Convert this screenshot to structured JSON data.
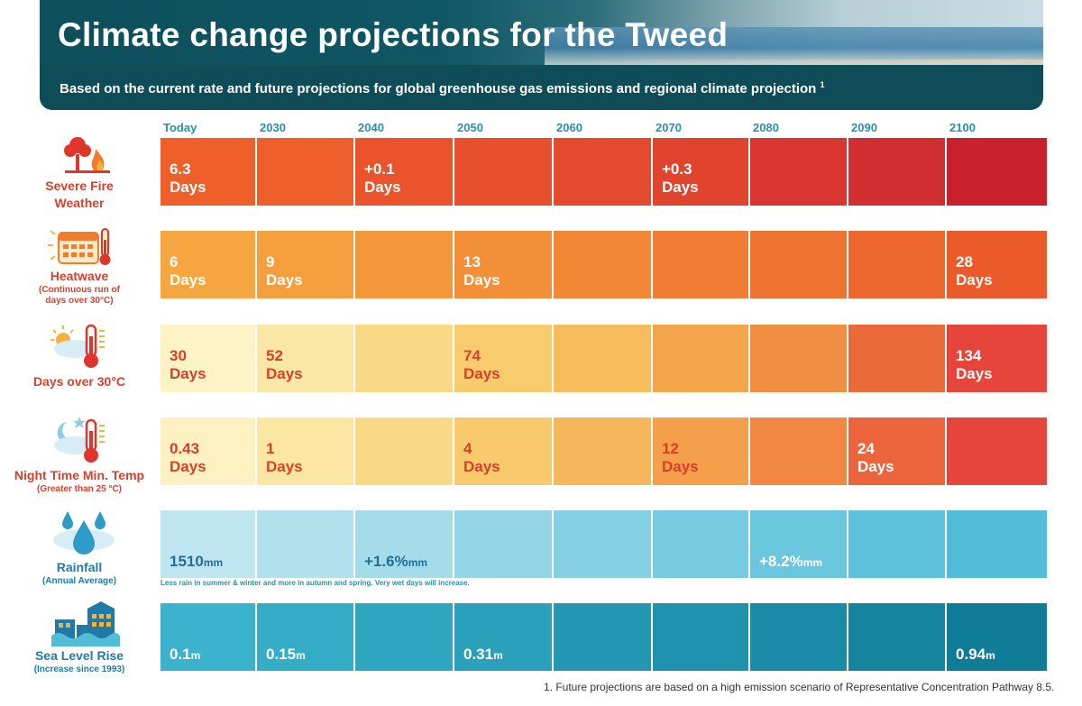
{
  "header": {
    "title": "Climate change projections for the Tweed",
    "subtitle": "Based on the current rate and future projections for global greenhouse gas emissions and regional climate projection",
    "subtitle_ref": "1"
  },
  "years": [
    "Today",
    "2030",
    "2040",
    "2050",
    "2060",
    "2070",
    "2080",
    "2090",
    "2100"
  ],
  "rows": [
    {
      "label": "Severe Fire Weather",
      "label_line1": "Severe Fire",
      "label_line2": "Weather",
      "sublabel": "",
      "icon": "fire-tree-icon",
      "text_color": "#ffffff",
      "colors": [
        "#ee5f2a",
        "#ee5e2b",
        "#ea532b",
        "#e8502d",
        "#e44a2e",
        "#e0442f",
        "#d93631",
        "#d12e31",
        "#c8202d"
      ],
      "values": [
        {
          "num": "6.3",
          "unit": "Days"
        },
        null,
        {
          "num": "+0.1",
          "unit": "Days"
        },
        null,
        null,
        {
          "num": "+0.3",
          "unit": "Days"
        },
        null,
        null,
        null
      ]
    },
    {
      "label": "Heatwave",
      "sublabel_line1": "(Continuous run of",
      "sublabel_line2": "days over 30°C)",
      "icon": "calendar-thermometer-icon",
      "text_color": "#ffffff",
      "colors": [
        "#f6a640",
        "#f59e3e",
        "#f4973b",
        "#f38f38",
        "#f28735",
        "#f07d33",
        "#ee7330",
        "#ec662d",
        "#ea5a2b"
      ],
      "values": [
        {
          "num": "6",
          "unit": "Days"
        },
        {
          "num": "9",
          "unit": "Days"
        },
        null,
        {
          "num": "13",
          "unit": "Days"
        },
        null,
        null,
        null,
        null,
        {
          "num": "28",
          "unit": "Days"
        }
      ]
    },
    {
      "label": "Days over 30°C",
      "sublabel": "",
      "icon": "sun-thermometer-icon",
      "text_color": "#d7402b",
      "last_text_color": "#ffffff",
      "colors": [
        "#fdf3c4",
        "#fbe7a5",
        "#f9d986",
        "#f8cb6c",
        "#f6bb5a",
        "#f4a64b",
        "#f18e42",
        "#ea6a39",
        "#e5453a"
      ],
      "values": [
        {
          "num": "30",
          "unit": "Days"
        },
        {
          "num": "52",
          "unit": "Days"
        },
        null,
        {
          "num": "74",
          "unit": "Days"
        },
        null,
        null,
        null,
        null,
        {
          "num": "134",
          "unit": "Days"
        }
      ]
    },
    {
      "label": "Night Time Min. Temp",
      "sublabel": "(Greater than 25 °C)",
      "icon": "moon-thermometer-icon",
      "text_color": "#d7402b",
      "white_from": 7,
      "colors": [
        "#fdf1c2",
        "#fbe6a2",
        "#f9d886",
        "#f8ca6c",
        "#f6b75a",
        "#f4a04a",
        "#f18742",
        "#ec643b",
        "#e5453a"
      ],
      "values": [
        {
          "num": "0.43",
          "unit": "Days"
        },
        {
          "num": "1",
          "unit": "Days"
        },
        null,
        {
          "num": "4",
          "unit": "Days"
        },
        null,
        {
          "num": "12",
          "unit": "Days"
        },
        null,
        {
          "num": "24",
          "unit": "Days"
        },
        null
      ]
    },
    {
      "label": "Rainfall",
      "sublabel": "(Annual Average)",
      "icon": "rain-drops-icon",
      "text_color": "#1f6f99",
      "white_from": 6,
      "colors": [
        "#bfe6f0",
        "#b2e1ed",
        "#a4dce9",
        "#94d6e6",
        "#85d1e3",
        "#76cbe0",
        "#69c6dd",
        "#5cc1da",
        "#52bdd7"
      ],
      "values": [
        {
          "num": "1510",
          "unit": "mm"
        },
        null,
        {
          "num": "+1.6%",
          "unit": "mm"
        },
        null,
        null,
        null,
        {
          "num": "+8.2%",
          "unit": "mm"
        },
        null,
        null
      ],
      "note": "Less rain in summer & winter and more in autumn and spring. Very wet days will increase."
    },
    {
      "label": "Sea Level Rise",
      "sublabel": "(Increase since 1993)",
      "icon": "flooded-buildings-icon",
      "text_color": "#ffffff",
      "colors": [
        "#3bb3cc",
        "#35adc7",
        "#2fa6c0",
        "#2aa0ba",
        "#2498b3",
        "#1f92ad",
        "#1a8ba6",
        "#15849f",
        "#107d98"
      ],
      "values": [
        {
          "num": "0.1",
          "unit": "m"
        },
        {
          "num": "0.15",
          "unit": "m"
        },
        null,
        {
          "num": "0.31",
          "unit": "m"
        },
        null,
        null,
        null,
        null,
        {
          "num": "0.94",
          "unit": "m"
        }
      ]
    }
  ],
  "footnote": "1. Future projections are based on a high emission scenario of Representative Concentration Pathway 8.5."
}
